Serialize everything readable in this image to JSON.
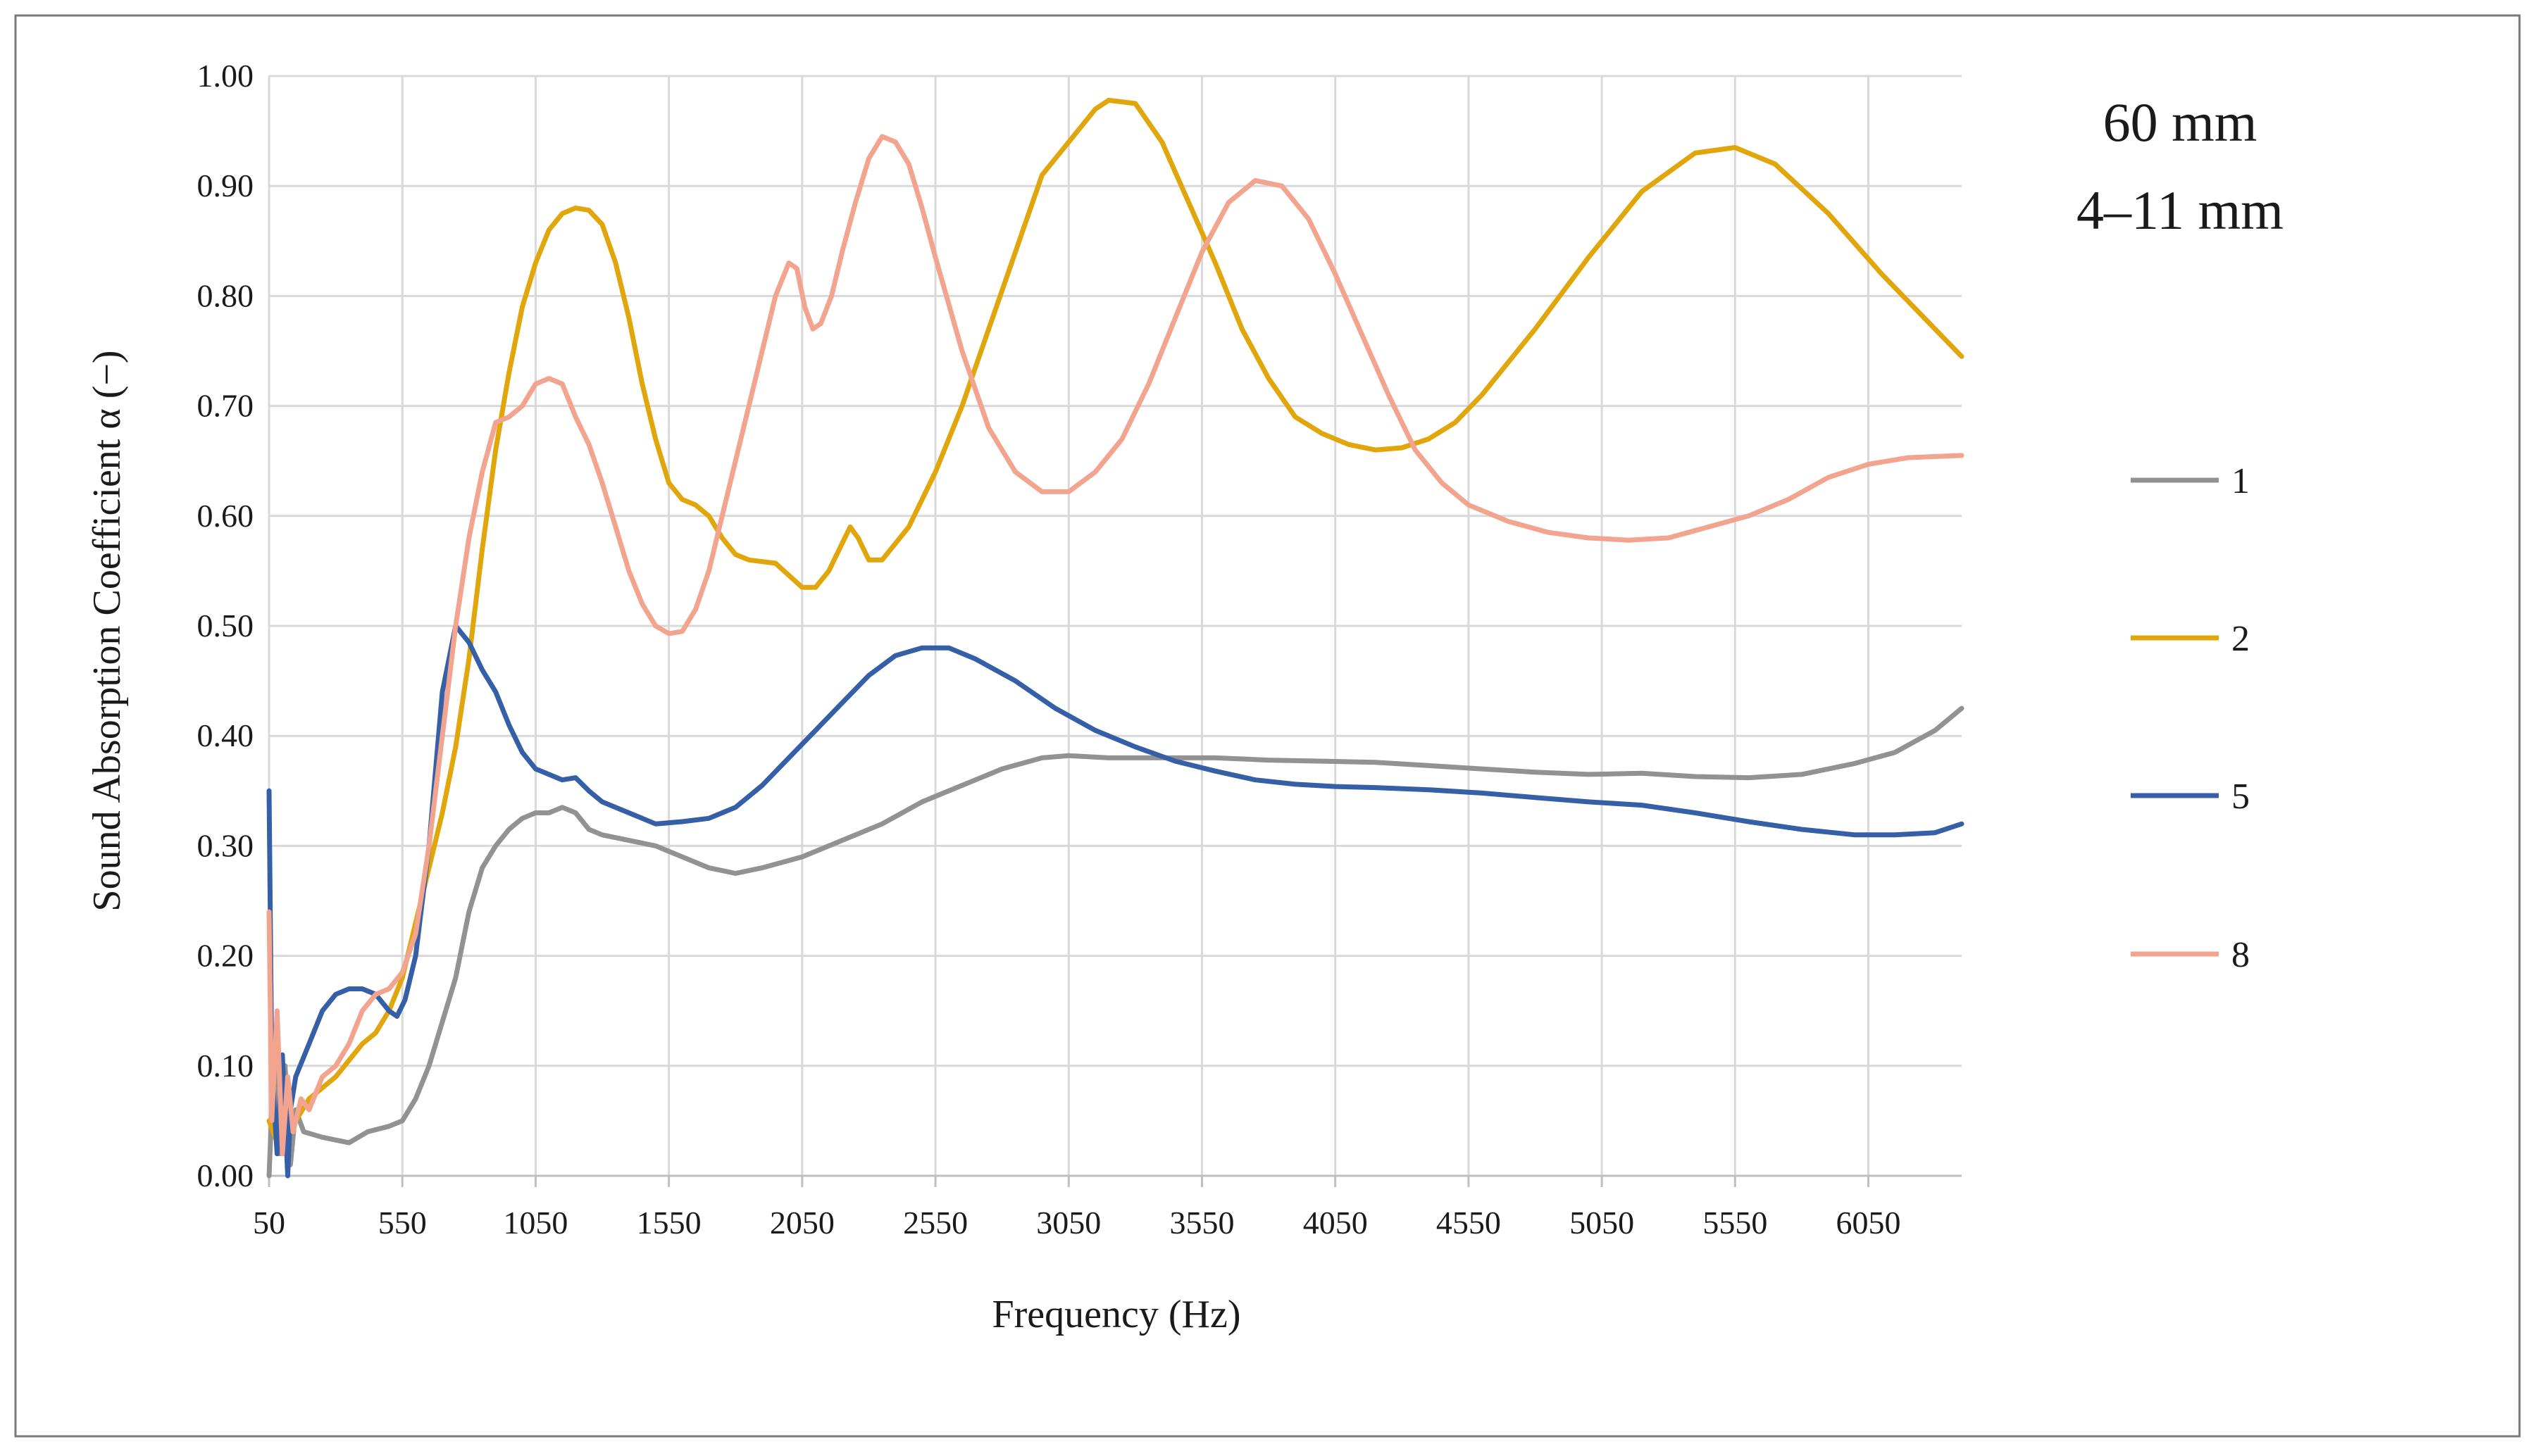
{
  "chart_data": {
    "type": "line",
    "title": "",
    "annotation_lines": [
      "60 mm",
      "4–11 mm"
    ],
    "xlabel": "Frequency (Hz)",
    "ylabel": "Sound Absorption Coefficient α (−)",
    "xlim": [
      50,
      6400
    ],
    "ylim": [
      0,
      1
    ],
    "x_ticks": [
      50,
      550,
      1050,
      1550,
      2050,
      2550,
      3050,
      3550,
      4050,
      4550,
      5050,
      5550,
      6050
    ],
    "x_tick_labels": [
      "50",
      "550",
      "1050",
      "1550",
      "2050",
      "2550",
      "3050",
      "3550",
      "4050",
      "4550",
      "5050",
      "5550",
      "6050"
    ],
    "y_ticks": [
      0,
      0.1,
      0.2,
      0.3,
      0.4,
      0.5,
      0.6,
      0.7,
      0.8,
      0.9,
      1.0
    ],
    "y_tick_labels": [
      "0.00",
      "0.10",
      "0.20",
      "0.30",
      "0.40",
      "0.50",
      "0.60",
      "0.70",
      "0.80",
      "0.90",
      "1.00"
    ],
    "grid": true,
    "legend_position": "right",
    "series": [
      {
        "name": "1",
        "color": "#929292",
        "points": [
          [
            50,
            0.0
          ],
          [
            70,
            0.12
          ],
          [
            90,
            0.02
          ],
          [
            110,
            0.1
          ],
          [
            130,
            0.01
          ],
          [
            150,
            0.06
          ],
          [
            180,
            0.04
          ],
          [
            250,
            0.035
          ],
          [
            350,
            0.03
          ],
          [
            420,
            0.04
          ],
          [
            500,
            0.045
          ],
          [
            550,
            0.05
          ],
          [
            600,
            0.07
          ],
          [
            650,
            0.1
          ],
          [
            700,
            0.14
          ],
          [
            750,
            0.18
          ],
          [
            800,
            0.24
          ],
          [
            850,
            0.28
          ],
          [
            900,
            0.3
          ],
          [
            950,
            0.315
          ],
          [
            1000,
            0.325
          ],
          [
            1050,
            0.33
          ],
          [
            1100,
            0.33
          ],
          [
            1150,
            0.335
          ],
          [
            1200,
            0.33
          ],
          [
            1250,
            0.315
          ],
          [
            1300,
            0.31
          ],
          [
            1400,
            0.305
          ],
          [
            1500,
            0.3
          ],
          [
            1600,
            0.29
          ],
          [
            1700,
            0.28
          ],
          [
            1800,
            0.275
          ],
          [
            1900,
            0.28
          ],
          [
            2050,
            0.29
          ],
          [
            2200,
            0.305
          ],
          [
            2350,
            0.32
          ],
          [
            2500,
            0.34
          ],
          [
            2650,
            0.355
          ],
          [
            2800,
            0.37
          ],
          [
            2950,
            0.38
          ],
          [
            3050,
            0.382
          ],
          [
            3200,
            0.38
          ],
          [
            3400,
            0.38
          ],
          [
            3600,
            0.38
          ],
          [
            3800,
            0.378
          ],
          [
            4000,
            0.377
          ],
          [
            4200,
            0.376
          ],
          [
            4400,
            0.373
          ],
          [
            4600,
            0.37
          ],
          [
            4800,
            0.367
          ],
          [
            5000,
            0.365
          ],
          [
            5200,
            0.366
          ],
          [
            5400,
            0.363
          ],
          [
            5600,
            0.362
          ],
          [
            5800,
            0.365
          ],
          [
            6000,
            0.375
          ],
          [
            6150,
            0.385
          ],
          [
            6300,
            0.405
          ],
          [
            6400,
            0.425
          ]
        ]
      },
      {
        "name": "2",
        "color": "#E0A60B",
        "points": [
          [
            50,
            0.05
          ],
          [
            80,
            0.03
          ],
          [
            110,
            0.04
          ],
          [
            150,
            0.05
          ],
          [
            200,
            0.07
          ],
          [
            300,
            0.09
          ],
          [
            400,
            0.12
          ],
          [
            450,
            0.13
          ],
          [
            500,
            0.15
          ],
          [
            550,
            0.18
          ],
          [
            600,
            0.23
          ],
          [
            650,
            0.28
          ],
          [
            700,
            0.33
          ],
          [
            750,
            0.39
          ],
          [
            800,
            0.47
          ],
          [
            850,
            0.57
          ],
          [
            900,
            0.66
          ],
          [
            950,
            0.73
          ],
          [
            1000,
            0.79
          ],
          [
            1050,
            0.83
          ],
          [
            1100,
            0.86
          ],
          [
            1150,
            0.875
          ],
          [
            1200,
            0.88
          ],
          [
            1250,
            0.878
          ],
          [
            1300,
            0.865
          ],
          [
            1350,
            0.83
          ],
          [
            1400,
            0.78
          ],
          [
            1450,
            0.72
          ],
          [
            1500,
            0.67
          ],
          [
            1550,
            0.63
          ],
          [
            1600,
            0.615
          ],
          [
            1650,
            0.61
          ],
          [
            1700,
            0.6
          ],
          [
            1750,
            0.58
          ],
          [
            1800,
            0.565
          ],
          [
            1850,
            0.56
          ],
          [
            1950,
            0.557
          ],
          [
            2050,
            0.535
          ],
          [
            2100,
            0.535
          ],
          [
            2150,
            0.55
          ],
          [
            2200,
            0.575
          ],
          [
            2230,
            0.59
          ],
          [
            2260,
            0.58
          ],
          [
            2300,
            0.56
          ],
          [
            2350,
            0.56
          ],
          [
            2450,
            0.59
          ],
          [
            2550,
            0.64
          ],
          [
            2650,
            0.7
          ],
          [
            2750,
            0.77
          ],
          [
            2850,
            0.84
          ],
          [
            2950,
            0.91
          ],
          [
            3050,
            0.94
          ],
          [
            3150,
            0.97
          ],
          [
            3200,
            0.978
          ],
          [
            3300,
            0.975
          ],
          [
            3400,
            0.94
          ],
          [
            3500,
            0.885
          ],
          [
            3600,
            0.83
          ],
          [
            3700,
            0.77
          ],
          [
            3800,
            0.725
          ],
          [
            3900,
            0.69
          ],
          [
            4000,
            0.675
          ],
          [
            4100,
            0.665
          ],
          [
            4200,
            0.66
          ],
          [
            4300,
            0.662
          ],
          [
            4400,
            0.67
          ],
          [
            4500,
            0.685
          ],
          [
            4600,
            0.71
          ],
          [
            4800,
            0.77
          ],
          [
            5000,
            0.835
          ],
          [
            5200,
            0.895
          ],
          [
            5400,
            0.93
          ],
          [
            5550,
            0.935
          ],
          [
            5700,
            0.92
          ],
          [
            5900,
            0.875
          ],
          [
            6100,
            0.82
          ],
          [
            6300,
            0.77
          ],
          [
            6400,
            0.745
          ]
        ]
      },
      {
        "name": "5",
        "color": "#3560A8",
        "points": [
          [
            50,
            0.35
          ],
          [
            60,
            0.1
          ],
          [
            80,
            0.02
          ],
          [
            100,
            0.11
          ],
          [
            120,
            0.0
          ],
          [
            130,
            0.06
          ],
          [
            150,
            0.09
          ],
          [
            200,
            0.12
          ],
          [
            250,
            0.15
          ],
          [
            300,
            0.165
          ],
          [
            350,
            0.17
          ],
          [
            400,
            0.17
          ],
          [
            450,
            0.165
          ],
          [
            500,
            0.15
          ],
          [
            530,
            0.145
          ],
          [
            560,
            0.16
          ],
          [
            600,
            0.2
          ],
          [
            650,
            0.3
          ],
          [
            700,
            0.44
          ],
          [
            750,
            0.5
          ],
          [
            800,
            0.485
          ],
          [
            850,
            0.46
          ],
          [
            900,
            0.44
          ],
          [
            950,
            0.41
          ],
          [
            1000,
            0.385
          ],
          [
            1050,
            0.37
          ],
          [
            1100,
            0.365
          ],
          [
            1150,
            0.36
          ],
          [
            1200,
            0.362
          ],
          [
            1250,
            0.35
          ],
          [
            1300,
            0.34
          ],
          [
            1400,
            0.33
          ],
          [
            1500,
            0.32
          ],
          [
            1600,
            0.322
          ],
          [
            1700,
            0.325
          ],
          [
            1800,
            0.335
          ],
          [
            1900,
            0.355
          ],
          [
            2000,
            0.38
          ],
          [
            2100,
            0.405
          ],
          [
            2200,
            0.43
          ],
          [
            2300,
            0.455
          ],
          [
            2400,
            0.473
          ],
          [
            2500,
            0.48
          ],
          [
            2600,
            0.48
          ],
          [
            2700,
            0.47
          ],
          [
            2850,
            0.45
          ],
          [
            3000,
            0.425
          ],
          [
            3150,
            0.405
          ],
          [
            3300,
            0.39
          ],
          [
            3450,
            0.377
          ],
          [
            3600,
            0.368
          ],
          [
            3750,
            0.36
          ],
          [
            3900,
            0.356
          ],
          [
            4050,
            0.354
          ],
          [
            4200,
            0.353
          ],
          [
            4400,
            0.351
          ],
          [
            4600,
            0.348
          ],
          [
            4800,
            0.344
          ],
          [
            5000,
            0.34
          ],
          [
            5200,
            0.337
          ],
          [
            5400,
            0.33
          ],
          [
            5600,
            0.322
          ],
          [
            5800,
            0.315
          ],
          [
            6000,
            0.31
          ],
          [
            6150,
            0.31
          ],
          [
            6300,
            0.312
          ],
          [
            6400,
            0.32
          ]
        ]
      },
      {
        "name": "8",
        "color": "#F2A48F",
        "points": [
          [
            50,
            0.24
          ],
          [
            60,
            0.05
          ],
          [
            80,
            0.15
          ],
          [
            100,
            0.02
          ],
          [
            120,
            0.09
          ],
          [
            140,
            0.04
          ],
          [
            170,
            0.07
          ],
          [
            200,
            0.06
          ],
          [
            250,
            0.09
          ],
          [
            300,
            0.1
          ],
          [
            350,
            0.12
          ],
          [
            400,
            0.15
          ],
          [
            450,
            0.165
          ],
          [
            500,
            0.17
          ],
          [
            550,
            0.185
          ],
          [
            600,
            0.22
          ],
          [
            650,
            0.3
          ],
          [
            700,
            0.4
          ],
          [
            750,
            0.5
          ],
          [
            800,
            0.58
          ],
          [
            850,
            0.64
          ],
          [
            900,
            0.685
          ],
          [
            950,
            0.69
          ],
          [
            1000,
            0.7
          ],
          [
            1050,
            0.72
          ],
          [
            1100,
            0.725
          ],
          [
            1150,
            0.72
          ],
          [
            1200,
            0.69
          ],
          [
            1250,
            0.665
          ],
          [
            1300,
            0.63
          ],
          [
            1350,
            0.59
          ],
          [
            1400,
            0.55
          ],
          [
            1450,
            0.52
          ],
          [
            1500,
            0.5
          ],
          [
            1550,
            0.493
          ],
          [
            1600,
            0.495
          ],
          [
            1650,
            0.515
          ],
          [
            1700,
            0.55
          ],
          [
            1750,
            0.6
          ],
          [
            1800,
            0.65
          ],
          [
            1850,
            0.7
          ],
          [
            1900,
            0.75
          ],
          [
            1950,
            0.8
          ],
          [
            2000,
            0.83
          ],
          [
            2030,
            0.825
          ],
          [
            2060,
            0.79
          ],
          [
            2090,
            0.77
          ],
          [
            2120,
            0.775
          ],
          [
            2160,
            0.8
          ],
          [
            2200,
            0.84
          ],
          [
            2250,
            0.885
          ],
          [
            2300,
            0.925
          ],
          [
            2350,
            0.945
          ],
          [
            2400,
            0.94
          ],
          [
            2450,
            0.92
          ],
          [
            2500,
            0.88
          ],
          [
            2550,
            0.835
          ],
          [
            2650,
            0.75
          ],
          [
            2750,
            0.68
          ],
          [
            2850,
            0.64
          ],
          [
            2950,
            0.622
          ],
          [
            3050,
            0.622
          ],
          [
            3150,
            0.64
          ],
          [
            3250,
            0.67
          ],
          [
            3350,
            0.72
          ],
          [
            3450,
            0.78
          ],
          [
            3550,
            0.84
          ],
          [
            3650,
            0.885
          ],
          [
            3750,
            0.905
          ],
          [
            3850,
            0.9
          ],
          [
            3950,
            0.87
          ],
          [
            4050,
            0.82
          ],
          [
            4150,
            0.765
          ],
          [
            4250,
            0.71
          ],
          [
            4350,
            0.66
          ],
          [
            4450,
            0.63
          ],
          [
            4550,
            0.61
          ],
          [
            4700,
            0.595
          ],
          [
            4850,
            0.585
          ],
          [
            5000,
            0.58
          ],
          [
            5150,
            0.578
          ],
          [
            5300,
            0.58
          ],
          [
            5450,
            0.59
          ],
          [
            5600,
            0.6
          ],
          [
            5750,
            0.615
          ],
          [
            5900,
            0.635
          ],
          [
            6050,
            0.647
          ],
          [
            6200,
            0.653
          ],
          [
            6400,
            0.655
          ]
        ]
      }
    ]
  }
}
